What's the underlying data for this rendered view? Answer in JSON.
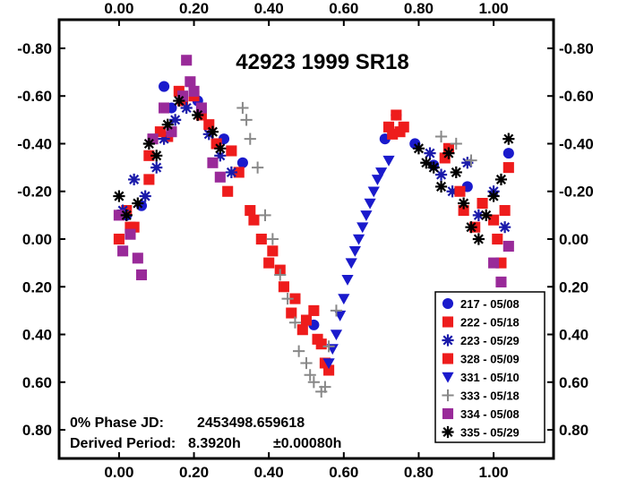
{
  "chart_data": {
    "type": "scatter",
    "title": "42923 1999 SR18",
    "x_ticks": [
      "0.00",
      "0.20",
      "0.40",
      "0.60",
      "0.80",
      "1.00"
    ],
    "y_ticks": [
      "-0.80",
      "-0.60",
      "-0.40",
      "-0.20",
      "0.00",
      "0.20",
      "0.40",
      "0.60",
      "0.80"
    ],
    "xlim": [
      -0.16,
      1.16
    ],
    "ylim": [
      -0.92,
      0.92
    ],
    "y_inverted": true,
    "grid": false,
    "legend_position": "bottom-right",
    "annotations": {
      "phase_label": "0% Phase JD:",
      "phase_value": "2453498.659618",
      "period_label": "Derived Period:",
      "period_value": "8.3920h",
      "period_error": "±0.00080h"
    },
    "series": [
      {
        "name": "217 - 05/08",
        "marker": "circle",
        "color": "#1a1acc",
        "x": [
          0.02,
          0.06,
          0.12,
          0.14,
          0.21,
          0.28,
          0.33,
          0.52,
          0.71,
          0.74,
          0.79,
          0.84,
          0.93,
          1.04
        ],
        "y": [
          -0.1,
          -0.14,
          -0.64,
          -0.55,
          -0.58,
          -0.42,
          -0.32,
          0.36,
          -0.42,
          -0.52,
          -0.4,
          -0.31,
          -0.22,
          -0.36
        ]
      },
      {
        "name": "222 - 05/18",
        "marker": "square",
        "color": "#ee1c1c",
        "x": [
          0.0,
          0.02,
          0.04,
          0.08,
          0.13,
          0.17,
          0.22,
          0.26,
          0.29,
          0.32,
          0.35,
          0.38,
          0.41,
          0.44,
          0.46,
          0.49,
          0.52,
          0.54,
          0.56,
          0.73,
          0.74,
          0.76,
          0.88,
          0.92,
          0.95,
          1.0,
          1.02,
          1.04
        ],
        "y": [
          0.0,
          -0.12,
          -0.05,
          -0.25,
          -0.43,
          -0.58,
          -0.52,
          -0.4,
          -0.2,
          -0.28,
          -0.12,
          0.0,
          0.05,
          0.2,
          0.31,
          0.38,
          0.3,
          0.44,
          0.55,
          -0.44,
          -0.52,
          -0.47,
          -0.38,
          -0.12,
          -0.05,
          -0.08,
          0.1,
          -0.3
        ]
      },
      {
        "name": "223 - 05/29",
        "marker": "asterisk",
        "color": "#1a1aaa",
        "x": [
          0.01,
          0.04,
          0.07,
          0.1,
          0.12,
          0.15,
          0.18,
          0.24,
          0.27,
          0.3,
          0.83,
          0.86,
          0.89,
          0.93,
          0.96,
          1.0,
          1.03
        ],
        "y": [
          -0.12,
          -0.25,
          -0.18,
          -0.3,
          -0.42,
          -0.5,
          -0.55,
          -0.44,
          -0.35,
          -0.28,
          -0.36,
          -0.27,
          -0.2,
          -0.32,
          -0.1,
          -0.2,
          -0.05
        ]
      },
      {
        "name": "328 - 05/09",
        "marker": "square",
        "color": "#ee1c1c",
        "x": [
          0.03,
          0.08,
          0.11,
          0.16,
          0.2,
          0.24,
          0.3,
          0.36,
          0.4,
          0.43,
          0.47,
          0.5,
          0.53,
          0.55,
          0.72,
          0.75,
          0.87,
          0.91,
          0.97,
          1.01,
          1.03
        ],
        "y": [
          -0.05,
          -0.35,
          -0.45,
          -0.62,
          -0.6,
          -0.48,
          -0.37,
          -0.08,
          0.1,
          0.13,
          0.25,
          0.34,
          0.42,
          0.52,
          -0.47,
          -0.45,
          -0.34,
          -0.2,
          -0.15,
          0.0,
          -0.12
        ]
      },
      {
        "name": "331 - 05/10",
        "marker": "triangle-down",
        "color": "#1a1acc",
        "x": [
          0.56,
          0.57,
          0.58,
          0.59,
          0.6,
          0.61,
          0.62,
          0.63,
          0.64,
          0.65,
          0.66,
          0.67,
          0.68,
          0.69,
          0.7,
          0.72
        ],
        "y": [
          0.52,
          0.46,
          0.4,
          0.32,
          0.25,
          0.17,
          0.1,
          0.05,
          0.0,
          -0.05,
          -0.1,
          -0.15,
          -0.2,
          -0.25,
          -0.28,
          -0.33
        ]
      },
      {
        "name": "333 - 05/18",
        "marker": "plus",
        "color": "#888888",
        "x": [
          0.33,
          0.34,
          0.35,
          0.37,
          0.39,
          0.41,
          0.43,
          0.45,
          0.47,
          0.48,
          0.5,
          0.51,
          0.52,
          0.54,
          0.55,
          0.56,
          0.58,
          0.86,
          0.9,
          0.94
        ],
        "y": [
          -0.55,
          -0.5,
          -0.42,
          -0.3,
          -0.1,
          0.0,
          0.15,
          0.25,
          0.35,
          0.47,
          0.52,
          0.57,
          0.6,
          0.64,
          0.62,
          0.45,
          0.3,
          -0.43,
          -0.4,
          -0.33
        ]
      },
      {
        "name": "334 - 05/08",
        "marker": "square",
        "color": "#992a99",
        "x": [
          0.0,
          0.01,
          0.03,
          0.05,
          0.06,
          0.09,
          0.12,
          0.14,
          0.17,
          0.18,
          0.19,
          0.2,
          0.22,
          0.25,
          0.27,
          1.0,
          1.02,
          1.04
        ],
        "y": [
          -0.1,
          0.05,
          -0.02,
          0.08,
          0.15,
          -0.42,
          -0.55,
          -0.45,
          -0.6,
          -0.75,
          -0.66,
          -0.62,
          -0.55,
          -0.32,
          -0.26,
          0.1,
          0.18,
          0.03
        ]
      },
      {
        "name": "335 - 05/29",
        "marker": "asterisk",
        "color": "#000000",
        "x": [
          0.0,
          0.02,
          0.05,
          0.08,
          0.1,
          0.13,
          0.16,
          0.21,
          0.25,
          0.27,
          0.8,
          0.82,
          0.84,
          0.86,
          0.88,
          0.9,
          0.92,
          0.94,
          0.96,
          0.98,
          1.0,
          1.02,
          1.04
        ],
        "y": [
          -0.18,
          -0.1,
          -0.15,
          -0.4,
          -0.35,
          -0.48,
          -0.58,
          -0.52,
          -0.45,
          -0.38,
          -0.38,
          -0.32,
          -0.3,
          -0.22,
          -0.36,
          -0.28,
          -0.15,
          -0.05,
          0.0,
          -0.1,
          -0.18,
          -0.25,
          -0.42
        ]
      }
    ]
  }
}
